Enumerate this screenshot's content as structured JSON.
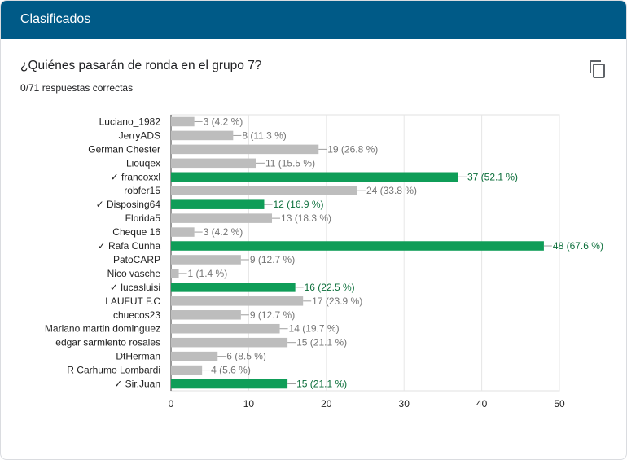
{
  "header": {
    "title": "Clasificados"
  },
  "question": {
    "title": "¿Quiénes pasarán de ronda en el grupo 7?",
    "score": "0/71 respuestas correctas"
  },
  "icons": {
    "copy": "copy-icon"
  },
  "colors": {
    "header": "#005a87",
    "correct": "#0f9d58",
    "incorrect": "#bdbdbd",
    "correct_label": "#0b6e3a",
    "incorrect_label": "#757575"
  },
  "chart_data": {
    "type": "bar",
    "orientation": "horizontal",
    "xlim": [
      0,
      50
    ],
    "xticks": [
      "0",
      "10",
      "20",
      "30",
      "40",
      "50"
    ],
    "grid": true,
    "categories": [
      "Luciano_1982",
      "JerryADS",
      "German Chester",
      "Liouqex",
      "✓ francoxxl",
      "robfer15",
      "✓ Disposing64",
      "Florida5",
      "Cheque 16",
      "✓ Rafa Cunha",
      "PatoCARP",
      "Nico vasche",
      "✓ lucasluisi",
      "LAUFUT F.C",
      "chuecos23",
      "Mariano martin dominguez",
      "edgar sarmiento rosales",
      "DtHerman",
      "R Carhumo Lombardi",
      "✓ Sir.Juan"
    ],
    "values": [
      3,
      8,
      19,
      11,
      37,
      24,
      12,
      13,
      3,
      48,
      9,
      1,
      16,
      17,
      9,
      14,
      15,
      6,
      4,
      15
    ],
    "labels": [
      "3 (4.2 %)",
      "8 (11.3 %)",
      "19 (26.8 %)",
      "11 (15.5 %)",
      "37 (52.1 %)",
      "24 (33.8 %)",
      "12 (16.9 %)",
      "13 (18.3 %)",
      "3 (4.2 %)",
      "48 (67.6 %)",
      "9 (12.7 %)",
      "1 (1.4 %)",
      "16 (22.5 %)",
      "17 (23.9 %)",
      "9 (12.7 %)",
      "14 (19.7 %)",
      "15 (21.1 %)",
      "6 (8.5 %)",
      "4 (5.6 %)",
      "15 (21.1 %)"
    ],
    "correct": [
      false,
      false,
      false,
      false,
      true,
      false,
      true,
      false,
      false,
      true,
      false,
      false,
      true,
      false,
      false,
      false,
      false,
      false,
      false,
      true
    ]
  }
}
